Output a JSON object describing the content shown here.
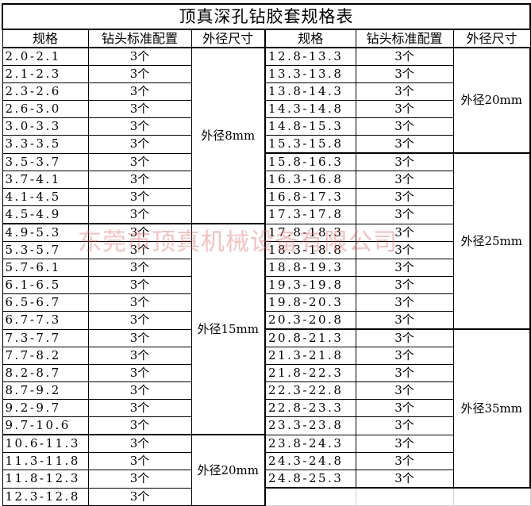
{
  "title": "顶真深孔钻胶套规格表",
  "headers": [
    "规格",
    "钻头标准配置",
    "外径尺寸"
  ],
  "watermark": "东莞市顶真机械设备有限公司",
  "left": {
    "groups": [
      {
        "label": "外径8mm",
        "rows": [
          [
            "2.0-2.1",
            "3个"
          ],
          [
            "2.1-2.3",
            "3个"
          ],
          [
            "2.3-2.6",
            "3个"
          ],
          [
            "2.6-3.0",
            "3个"
          ],
          [
            "3.0-3.3",
            "3个"
          ],
          [
            "3.3-3.5",
            "3个"
          ],
          [
            "3.5-3.7",
            "3个"
          ],
          [
            "3.7-4.1",
            "3个"
          ],
          [
            "4.1-4.5",
            "3个"
          ],
          [
            "4.5-4.9",
            "3个"
          ]
        ]
      },
      {
        "label": "外径15mm",
        "rows": [
          [
            "4.9-5.3",
            "3个"
          ],
          [
            "5.3-5.7",
            "3个"
          ],
          [
            "5.7-6.1",
            "3个"
          ],
          [
            "6.1-6.5",
            "3个"
          ],
          [
            "6.5-6.7",
            "3个"
          ],
          [
            "6.7-7.3",
            "3个"
          ],
          [
            "7.3-7.7",
            "3个"
          ],
          [
            "7.7-8.2",
            "3个"
          ],
          [
            "8.2-8.7",
            "3个"
          ],
          [
            "8.7-9.2",
            "3个"
          ],
          [
            "9.2-9.7",
            "3个"
          ],
          [
            "9.7-10.6",
            "3个"
          ]
        ]
      },
      {
        "label": "外径20mm",
        "rows": [
          [
            "10.6-11.3",
            "3个"
          ],
          [
            "11.3-11.8",
            "3个"
          ],
          [
            "11.8-12.3",
            "3个"
          ],
          [
            "12.3-12.8",
            "3个"
          ]
        ]
      }
    ]
  },
  "right": {
    "groups": [
      {
        "label": "外径20mm",
        "rows": [
          [
            "12.8-13.3",
            "3个"
          ],
          [
            "13.3-13.8",
            "3个"
          ],
          [
            "13.8-14.3",
            "3个"
          ],
          [
            "14.3-14.8",
            "3个"
          ],
          [
            "14.8-15.3",
            "3个"
          ],
          [
            "15.3-15.8",
            "3个"
          ]
        ]
      },
      {
        "label": "外径25mm",
        "rows": [
          [
            "15.8-16.3",
            "3个"
          ],
          [
            "16.3-16.8",
            "3个"
          ],
          [
            "16.8-17.3",
            "3个"
          ],
          [
            "17.3-17.8",
            "3个"
          ],
          [
            "17.8-18.3",
            "3个"
          ],
          [
            "18.3-18.8",
            "3个"
          ],
          [
            "18.8-19.3",
            "3个"
          ],
          [
            "19.3-19.8",
            "3个"
          ],
          [
            "19.8-20.3",
            "3个"
          ],
          [
            "20.3-20.8",
            "3个"
          ]
        ]
      },
      {
        "label": "外径35mm",
        "rows": [
          [
            "20.8-21.3",
            "3个"
          ],
          [
            "21.3-21.8",
            "3个"
          ],
          [
            "21.8-22.3",
            "3个"
          ],
          [
            "22.3-22.8",
            "3个"
          ],
          [
            "22.8-23.3",
            "3个"
          ],
          [
            "23.3-23.8",
            "3个"
          ],
          [
            "23.8-24.3",
            "3个"
          ],
          [
            "24.3-24.8",
            "3个"
          ],
          [
            "24.8-25.3",
            "3个"
          ]
        ]
      }
    ]
  }
}
